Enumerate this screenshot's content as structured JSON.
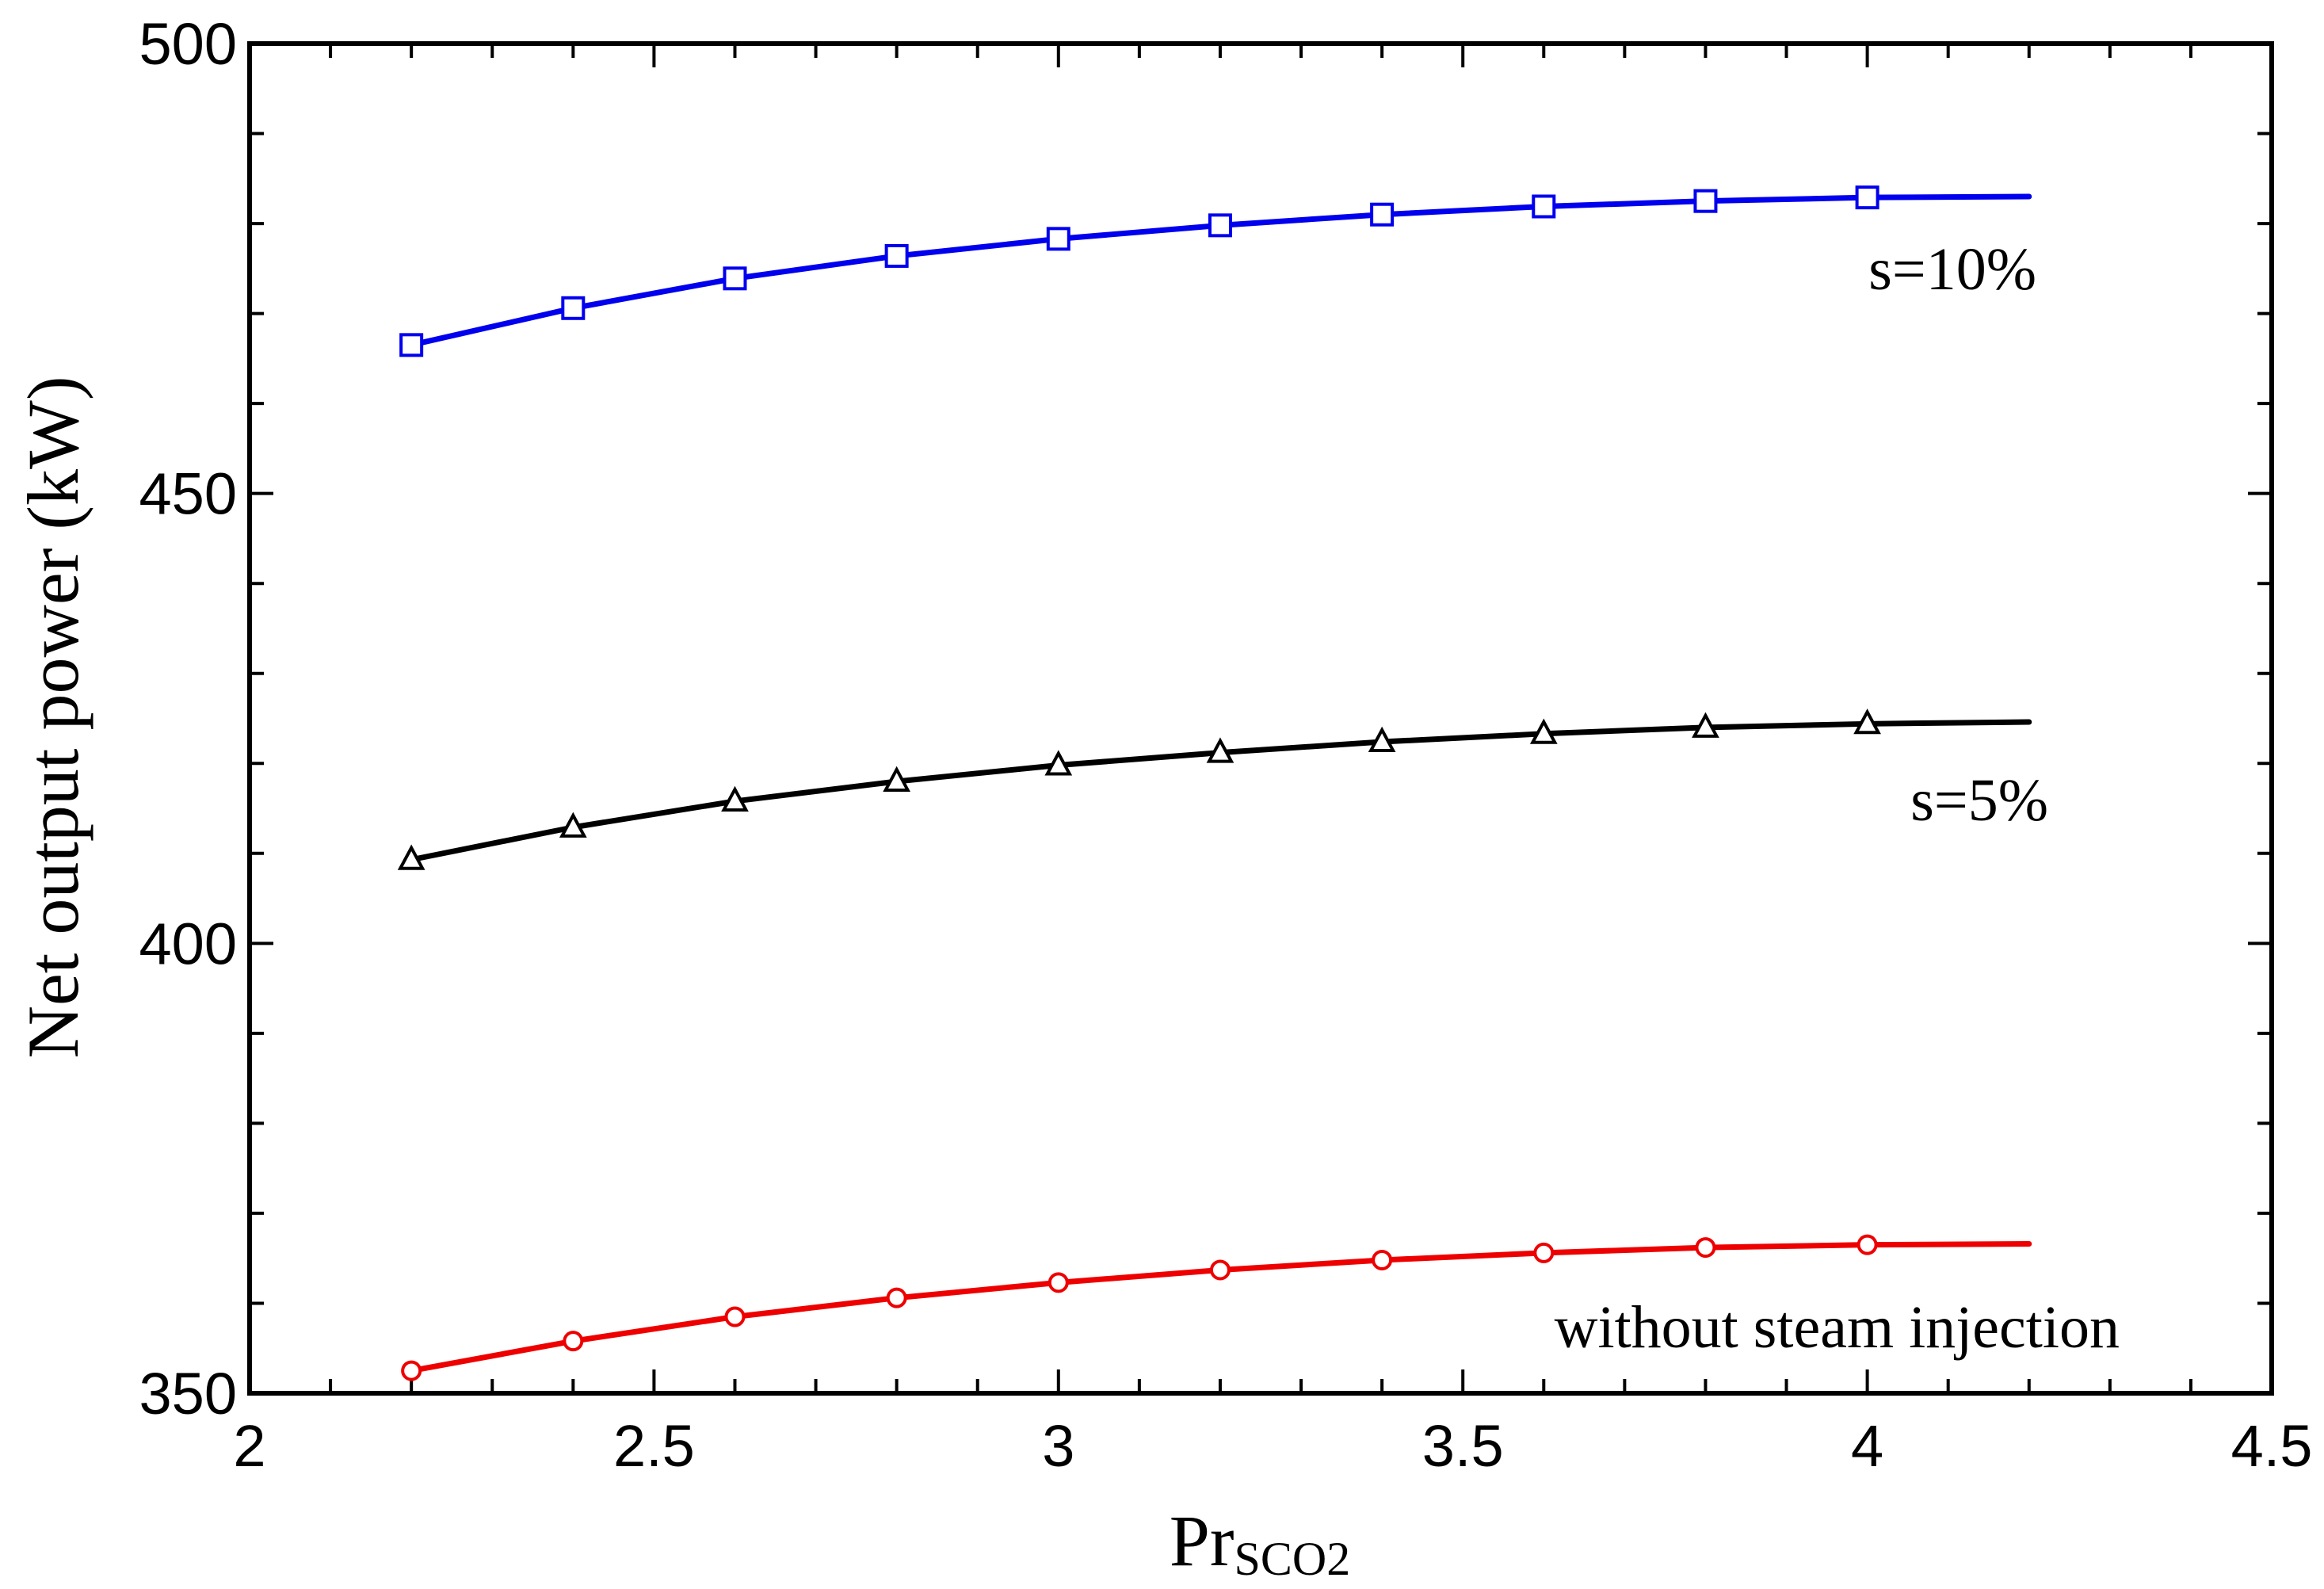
{
  "chart_data": {
    "type": "line",
    "title": "",
    "xlabel": "Pr",
    "xlabel_sub": "SCO2",
    "ylabel": "Net output power (kW)",
    "xlim": [
      2,
      4.5
    ],
    "ylim": [
      350,
      500
    ],
    "xticks": [
      2,
      2.5,
      3,
      3.5,
      4,
      4.5
    ],
    "xtick_labels": [
      "2",
      "2.5",
      "3",
      "3.5",
      "4",
      "4.5"
    ],
    "yticks": [
      350,
      400,
      450,
      500
    ],
    "ytick_labels": [
      "350",
      "400",
      "450",
      "500"
    ],
    "grid": false,
    "series": [
      {
        "name": "s=10%",
        "color": "#0000ee",
        "marker": "square",
        "x": [
          2.2,
          2.4,
          2.6,
          2.8,
          3.0,
          3.2,
          3.4,
          3.6,
          3.8,
          4.0
        ],
        "values": [
          466.5,
          470.6,
          473.9,
          476.4,
          478.3,
          479.8,
          481.0,
          481.9,
          482.5,
          482.9
        ],
        "line_end": [
          4.2,
          483.0
        ]
      },
      {
        "name": "s=5%",
        "color": "#000000",
        "marker": "triangle",
        "x": [
          2.2,
          2.4,
          2.6,
          2.8,
          3.0,
          3.2,
          3.4,
          3.6,
          3.8,
          4.0
        ],
        "values": [
          409.3,
          412.9,
          415.8,
          418.0,
          419.8,
          421.2,
          422.4,
          423.3,
          424.0,
          424.4
        ],
        "line_end": [
          4.2,
          424.6
        ]
      },
      {
        "name": "without steam injection",
        "color": "#ee0000",
        "marker": "circle",
        "x": [
          2.2,
          2.4,
          2.6,
          2.8,
          3.0,
          3.2,
          3.4,
          3.6,
          3.8,
          4.0
        ],
        "values": [
          352.5,
          355.8,
          358.5,
          360.6,
          362.3,
          363.7,
          364.8,
          365.6,
          366.2,
          366.5
        ],
        "line_end": [
          4.2,
          366.6
        ]
      }
    ],
    "annotations": [
      "s=10%",
      "s=5%",
      "without steam injection"
    ]
  }
}
